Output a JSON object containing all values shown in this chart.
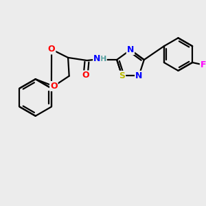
{
  "bg_color": "#ececec",
  "bond_color": "#000000",
  "atom_colors": {
    "O": "#ff0000",
    "N": "#0000ff",
    "S": "#bbbb00",
    "F": "#ff00ff",
    "C": "#000000",
    "H": "#4a9a9a"
  },
  "figsize": [
    3.0,
    3.0
  ],
  "dpi": 100,
  "lw": 1.6
}
